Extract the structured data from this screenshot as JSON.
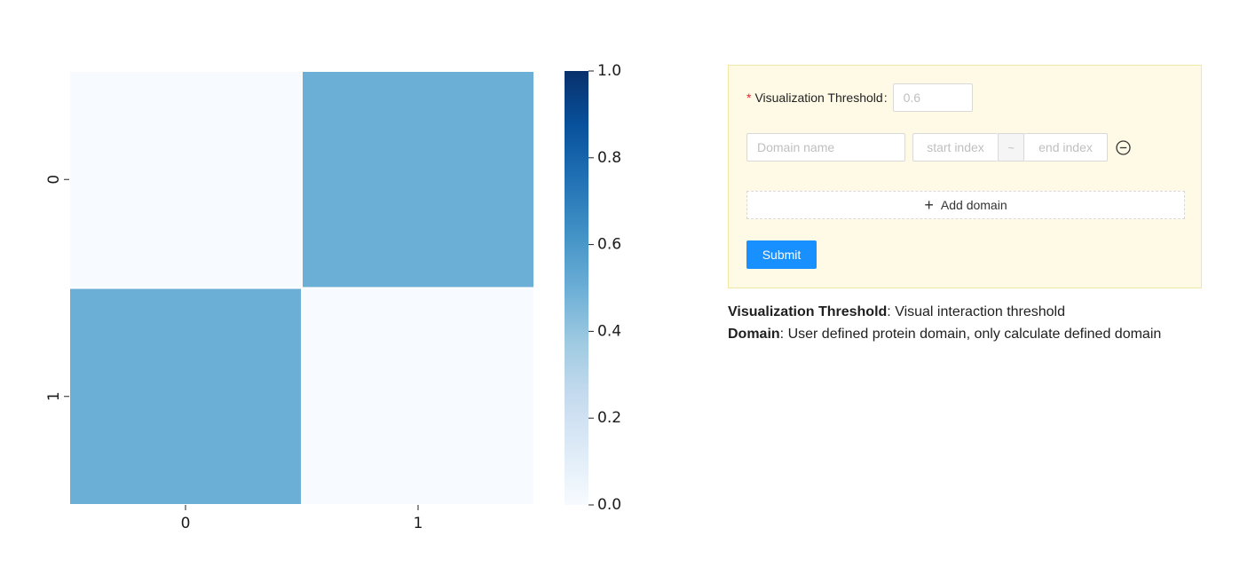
{
  "chart_data": {
    "type": "heatmap",
    "x_categories": [
      "0",
      "1"
    ],
    "y_categories": [
      "0",
      "1"
    ],
    "values": [
      [
        0.0,
        0.5
      ],
      [
        0.5,
        0.0
      ]
    ],
    "colorbar": {
      "min": 0.0,
      "max": 1.0,
      "ticks": [
        "0.0",
        "0.2",
        "0.4",
        "0.6",
        "0.8",
        "1.0"
      ],
      "colormap": "Blues"
    },
    "title": "",
    "xlabel": "",
    "ylabel": ""
  },
  "form": {
    "threshold": {
      "required_mark": "*",
      "label": "Visualization Threshold",
      "colon": ":",
      "placeholder": "0.6",
      "value": ""
    },
    "domain_row": {
      "name_placeholder": "Domain name",
      "start_placeholder": "start index",
      "separator": "~",
      "end_placeholder": "end index",
      "remove_icon": "minus-circle-icon"
    },
    "add_domain_label": "Add domain",
    "add_icon": "plus-icon",
    "submit_label": "Submit"
  },
  "descriptions": [
    {
      "term": "Visualization Threshold",
      "text": ": Visual interaction threshold"
    },
    {
      "term": "Domain",
      "text": ": User defined protein domain, only calculate defined domain"
    }
  ],
  "colors": {
    "panel_bg": "#fffae6",
    "panel_border": "#f3e7a6",
    "primary": "#1890ff",
    "required": "#f5222d"
  }
}
